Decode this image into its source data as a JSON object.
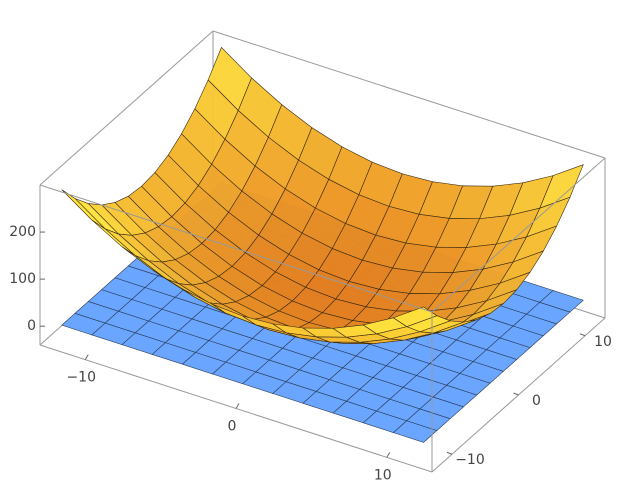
{
  "chart_data": {
    "type": "surface3d",
    "x": [
      -12,
      -10,
      -8,
      -6,
      -4,
      -2,
      0,
      2,
      4,
      6,
      8,
      10,
      12
    ],
    "y": [
      -12,
      -10,
      -8,
      -6,
      -4,
      -2,
      0,
      2,
      4,
      6,
      8,
      10,
      12
    ],
    "z": [
      [
        288,
        244,
        208,
        180,
        160,
        148,
        144,
        148,
        160,
        180,
        208,
        244,
        288
      ],
      [
        244,
        200,
        164,
        136,
        116,
        104,
        100,
        104,
        116,
        136,
        164,
        200,
        244
      ],
      [
        208,
        164,
        128,
        100,
        80,
        68,
        64,
        68,
        80,
        100,
        128,
        164,
        208
      ],
      [
        180,
        136,
        100,
        72,
        52,
        40,
        36,
        40,
        52,
        72,
        100,
        136,
        180
      ],
      [
        160,
        116,
        80,
        52,
        32,
        20,
        16,
        20,
        32,
        52,
        80,
        116,
        160
      ],
      [
        148,
        104,
        68,
        40,
        20,
        8,
        4,
        8,
        20,
        40,
        68,
        104,
        148
      ],
      [
        144,
        100,
        64,
        36,
        16,
        4,
        0,
        4,
        16,
        36,
        64,
        100,
        144
      ],
      [
        148,
        104,
        68,
        40,
        20,
        8,
        4,
        8,
        20,
        40,
        68,
        104,
        148
      ],
      [
        160,
        116,
        80,
        52,
        32,
        20,
        16,
        20,
        32,
        52,
        80,
        116,
        160
      ],
      [
        180,
        136,
        100,
        72,
        52,
        40,
        36,
        40,
        52,
        72,
        100,
        136,
        180
      ],
      [
        208,
        164,
        128,
        100,
        80,
        68,
        64,
        68,
        80,
        100,
        128,
        164,
        208
      ],
      [
        244,
        200,
        164,
        136,
        116,
        104,
        100,
        104,
        116,
        136,
        164,
        200,
        244
      ],
      [
        288,
        244,
        208,
        180,
        160,
        148,
        144,
        148,
        160,
        180,
        208,
        244,
        288
      ]
    ],
    "color": "#f0861c",
    "plane": {
      "z": 0,
      "color": "#6aa6ff"
    },
    "xlim": [
      -13,
      13
    ],
    "ylim": [
      -13,
      13
    ],
    "zlim": [
      -40,
      300
    ],
    "xticks": [
      {
        "value": -10,
        "label": "−10"
      },
      0,
      10
    ],
    "yticks": [
      {
        "value": -10,
        "label": "−10"
      },
      0,
      10
    ],
    "zticks": [
      0,
      100,
      200
    ]
  }
}
